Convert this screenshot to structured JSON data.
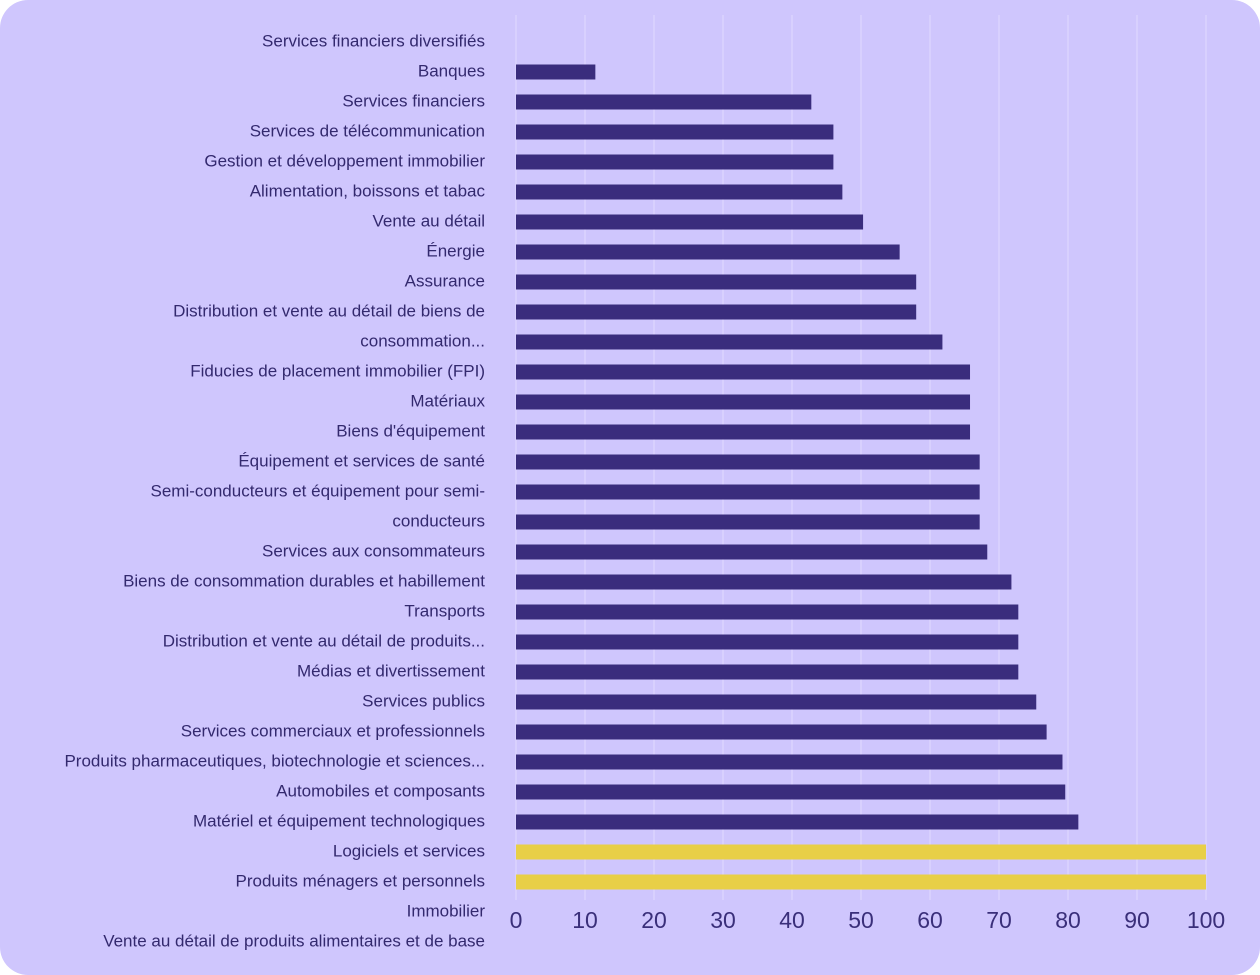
{
  "chart_data": {
    "type": "bar",
    "orientation": "horizontal",
    "label_rows": [
      "Services financiers diversifiés",
      "Banques",
      "Services financiers",
      "Services de télécommunication",
      "Gestion et développement immobilier",
      "Alimentation, boissons et tabac",
      "Vente au détail",
      "Énergie",
      "Assurance",
      "Distribution et vente au détail de biens de",
      "consommation...",
      "Fiducies de placement immobilier (FPI)",
      "Matériaux",
      "Biens d'équipement",
      "Équipement et services de santé",
      "Semi-conducteurs et équipement pour semi-",
      "conducteurs",
      "Services aux consommateurs",
      "Biens de consommation durables et habillement",
      "Transports",
      "Distribution et vente au détail de produits...",
      "Médias et divertissement",
      "Services publics",
      "Services commerciaux et professionnels",
      "Produits pharmaceutiques, biotechnologie et sciences...",
      "Automobiles et composants",
      "Matériel et équipement technologiques",
      "Logiciels et services",
      "Produits ménagers et personnels",
      "Immobilier",
      "Vente au détail de produits alimentaires et de base"
    ],
    "values": [
      0,
      11.5,
      42.8,
      46,
      46,
      47.3,
      50.3,
      55.6,
      58,
      58,
      61.8,
      65.8,
      65.8,
      65.8,
      67.2,
      67.2,
      67.2,
      68.3,
      71.8,
      72.8,
      72.8,
      72.8,
      75.4,
      76.9,
      79.2,
      79.6,
      81.5,
      100,
      100
    ],
    "highlighted": [
      false,
      false,
      false,
      false,
      false,
      false,
      false,
      false,
      false,
      false,
      false,
      false,
      false,
      false,
      false,
      false,
      false,
      false,
      false,
      false,
      false,
      false,
      false,
      false,
      false,
      false,
      false,
      true,
      true
    ],
    "x_ticks": [
      "0",
      "10",
      "20",
      "30",
      "40",
      "50",
      "60",
      "70",
      "80",
      "90",
      "100"
    ],
    "xlim": [
      0,
      100
    ],
    "grid": "vertical",
    "colors": {
      "background": "#cfc6fd",
      "bar": "#3a2d7d",
      "highlight": "#e8cf47",
      "grid": "#e6e1ff",
      "label": "#33296e"
    }
  }
}
